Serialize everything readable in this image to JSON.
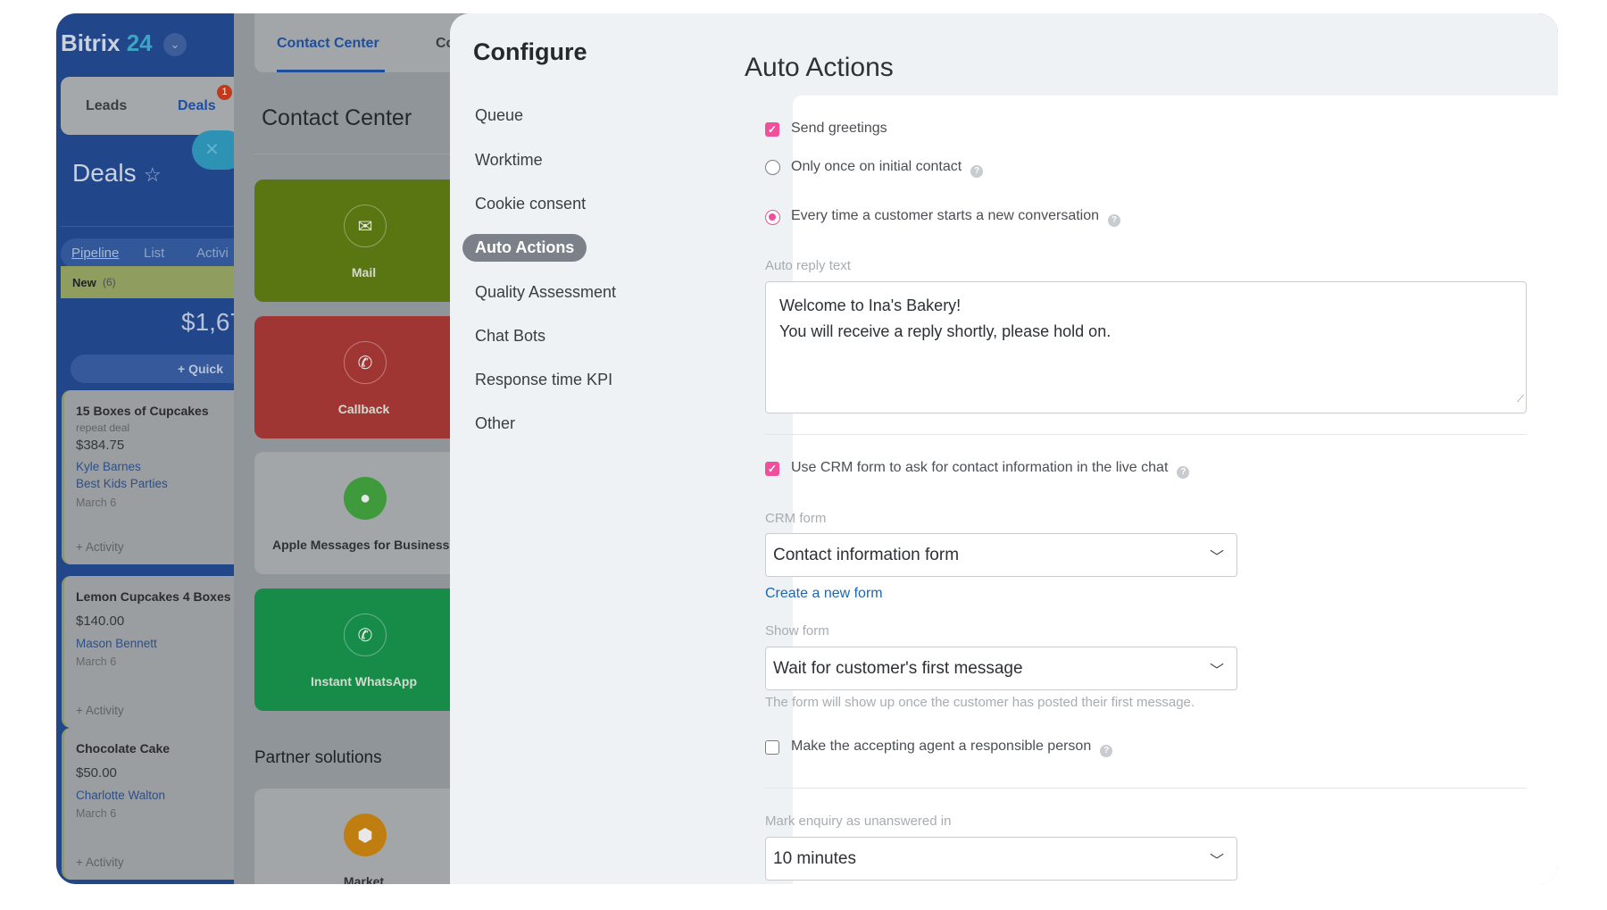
{
  "sidebar": {
    "brand": "Bitrix",
    "brand_num": "24",
    "tabs": {
      "leads": "Leads",
      "deals": "Deals",
      "deals_badge": "1"
    },
    "title": "Deals",
    "views": [
      "Pipeline",
      "List",
      "Activi"
    ],
    "stage": {
      "name": "New",
      "count": "(6)",
      "total": "$1,67"
    },
    "quick": "Quick",
    "cards": [
      {
        "title": "15 Boxes of Cupcakes",
        "subtitle": "repeat deal",
        "price": "$384.75",
        "contact": "Kyle Barnes",
        "company": "Best Kids Parties",
        "date": "March 6",
        "activity": "+ Activity"
      },
      {
        "title": "Lemon Cupcakes 4 Boxes",
        "price": "$140.00",
        "contact": "Mason Bennett",
        "date": "March 6",
        "activity": "+ Activity"
      },
      {
        "title": "Chocolate Cake",
        "price": "$50.00",
        "contact": "Charlotte Walton",
        "date": "March 6",
        "activity": "+ Activity"
      }
    ]
  },
  "contact_center": {
    "tabs": [
      "Contact Center",
      "Co"
    ],
    "title": "Contact Center",
    "tiles": [
      "Mail",
      "Callback",
      "Apple Messages for Business",
      "Instant WhatsApp"
    ],
    "partner_title": "Partner solutions",
    "partner_tiles": [
      "Market"
    ]
  },
  "configure": {
    "title": "Configure",
    "menu": [
      "Queue",
      "Worktime",
      "Cookie consent",
      "Auto Actions",
      "Quality Assessment",
      "Chat Bots",
      "Response time KPI",
      "Other"
    ],
    "active": "Auto Actions"
  },
  "auto_actions": {
    "title": "Auto Actions",
    "send_greetings": "Send greetings",
    "send_greetings_checked": true,
    "radio_once": "Only once on initial contact",
    "radio_every": "Every time a customer starts a new conversation",
    "selected_radio": "every",
    "auto_reply_label": "Auto reply text",
    "auto_reply_line1": "Welcome to Ina's Bakery!",
    "auto_reply_line2": "You will receive a reply shortly, please hold on.",
    "use_crm": "Use CRM form to ask for contact information in the live chat",
    "use_crm_checked": true,
    "crm_form_label": "CRM form",
    "crm_form_value": "Contact information form",
    "create_form": "Create a new form",
    "show_form_label": "Show form",
    "show_form_value": "Wait for customer's first message",
    "show_form_hint": "The form will show up once the customer has posted their first message.",
    "responsible": "Make the accepting agent a responsible person",
    "responsible_checked": false,
    "unanswered_label": "Mark enquiry as unanswered in",
    "unanswered_value": "10 minutes"
  },
  "colors": {
    "accent_pink": "#f0509b",
    "link_blue": "#2067b0",
    "sidebar_blue": "#21468a"
  }
}
